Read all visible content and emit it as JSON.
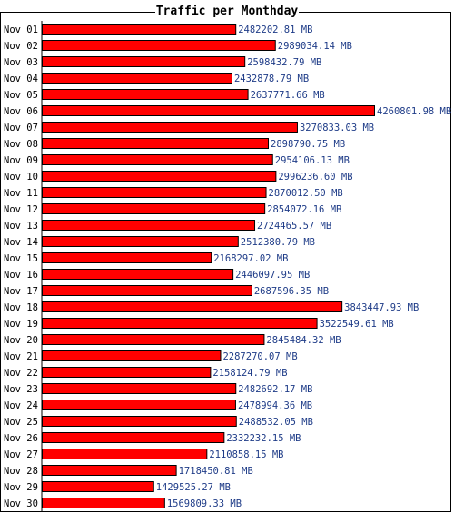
{
  "chart_data": {
    "type": "bar",
    "orientation": "horizontal",
    "title": "Traffic per Monthday",
    "categories": [
      "Nov 01",
      "Nov 02",
      "Nov 03",
      "Nov 04",
      "Nov 05",
      "Nov 06",
      "Nov 07",
      "Nov 08",
      "Nov 09",
      "Nov 10",
      "Nov 11",
      "Nov 12",
      "Nov 13",
      "Nov 14",
      "Nov 15",
      "Nov 16",
      "Nov 17",
      "Nov 18",
      "Nov 19",
      "Nov 20",
      "Nov 21",
      "Nov 22",
      "Nov 23",
      "Nov 24",
      "Nov 25",
      "Nov 26",
      "Nov 27",
      "Nov 28",
      "Nov 29",
      "Nov 30"
    ],
    "values": [
      2482202.81,
      2989034.14,
      2598432.79,
      2432878.79,
      2637771.66,
      4260801.98,
      3270833.03,
      2898790.75,
      2954106.13,
      2996236.6,
      2870012.5,
      2854072.16,
      2724465.57,
      2512380.79,
      2168297.02,
      2446097.95,
      2687596.35,
      3843447.93,
      3522549.61,
      2845484.32,
      2287270.07,
      2158124.79,
      2482692.17,
      2478994.36,
      2488532.05,
      2332232.15,
      2110858.15,
      1718450.81,
      1429525.27,
      1569809.33
    ],
    "value_labels": [
      "2482202.81 MB",
      "2989034.14 MB",
      "2598432.79 MB",
      "2432878.79 MB",
      "2637771.66 MB",
      "4260801.98 MB",
      "3270833.03 MB",
      "2898790.75 MB",
      "2954106.13 MB",
      "2996236.60 MB",
      "2870012.50 MB",
      "2854072.16 MB",
      "2724465.57 MB",
      "2512380.79 MB",
      "2168297.02 MB",
      "2446097.95 MB",
      "2687596.35 MB",
      "3843447.93 MB",
      "3522549.61 MB",
      "2845484.32 MB",
      "2287270.07 MB",
      "2158124.79 MB",
      "2482692.17 MB",
      "2478994.36 MB",
      "2488532.05 MB",
      "2332232.15 MB",
      "2110858.15 MB",
      "1718450.81 MB",
      "1429525.27 MB",
      "1569809.33 MB"
    ],
    "unit": "MB",
    "xlim": [
      0,
      4260801.98
    ],
    "grid": false,
    "legend": "none",
    "colors": {
      "bar_fill": "#ff0000",
      "bar_stroke": "#000000",
      "category_label": "#000000",
      "value_label": "#1f3c88",
      "frame": "#000000",
      "background": "#ffffff"
    }
  }
}
